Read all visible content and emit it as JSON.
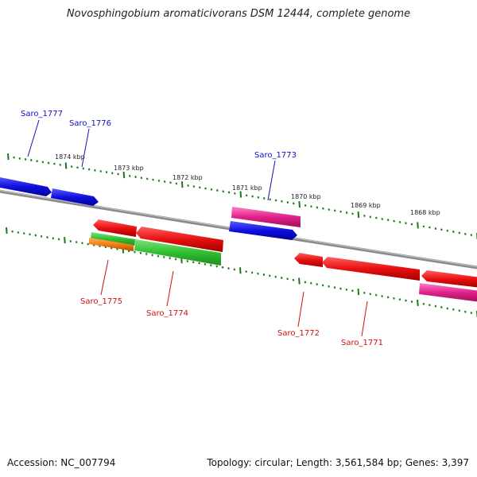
{
  "header": {
    "title": "Novosphingobium aromaticivorans DSM 12444, complete genome"
  },
  "footer": {
    "accession": "Accession: NC_007794",
    "summary": "Topology: circular; Length: 3,561,584 bp; Genes: 3,397"
  },
  "ruler": {
    "labels": [
      "1874 kbp",
      "1873 kbp",
      "1872 kbp",
      "1871 kbp",
      "1870 kbp",
      "1869 kbp",
      "1868 kbp"
    ]
  },
  "genes_forward": [
    {
      "label": "Saro_1777",
      "color": "#1414e0"
    },
    {
      "label": "Saro_1776",
      "color": "#1414e0"
    },
    {
      "label": "Saro_1773",
      "color": "#1414e0"
    }
  ],
  "genes_reverse": [
    {
      "label": "Saro_1775",
      "color": "#e01414"
    },
    {
      "label": "Saro_1774",
      "color": "#e01414"
    },
    {
      "label": "Saro_1772",
      "color": "#e01414"
    },
    {
      "label": "Saro_1771",
      "color": "#e01414"
    }
  ],
  "colors": {
    "forward_gene": "#1414e0",
    "reverse_gene": "#e01414",
    "feature_green": "#30c030",
    "feature_pink": "#e0208a",
    "feature_orange": "#f08010",
    "backbone": "#888888",
    "ticks": "#1a7a1a"
  }
}
